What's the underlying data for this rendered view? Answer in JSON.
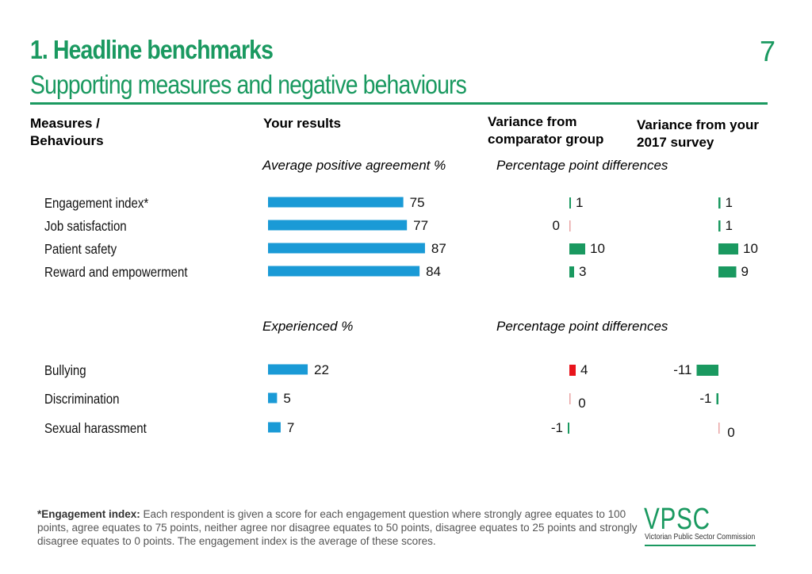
{
  "header": {
    "title": "1. Headline benchmarks",
    "subtitle": "Supporting measures and negative behaviours",
    "page_number": "7"
  },
  "columns": {
    "measures": "Measures / Behaviours",
    "results": "Your results",
    "comparator": "Variance from comparator group",
    "survey2017": "Variance from your 2017 survey"
  },
  "chart_data": [
    {
      "type": "bar",
      "section_label": "Average positive agreement %",
      "variance_label": "Percentage point differences",
      "categories": [
        "Engagement index*",
        "Job satisfaction",
        "Patient safety",
        "Reward and empowerment"
      ],
      "values": [
        75,
        77,
        87,
        84
      ],
      "comparator_variance": [
        1,
        0,
        10,
        3
      ],
      "survey_2017_variance": [
        1,
        1,
        10,
        9
      ]
    },
    {
      "type": "bar",
      "section_label": "Experienced %",
      "variance_label": "Percentage point differences",
      "categories": [
        "Bullying",
        "Discrimination",
        "Sexual harassment"
      ],
      "values": [
        22,
        5,
        7
      ],
      "comparator_variance": [
        4,
        0,
        -1
      ],
      "survey_2017_variance": [
        -11,
        -1,
        0
      ]
    }
  ],
  "colors": {
    "bar": "#1a9ad6",
    "positive_favourable": "#1a9960",
    "negative_unfavourable": "#e8141c",
    "zero": "#e9a3a3",
    "heading_green": "#1a9960"
  },
  "footnote": {
    "label": "*Engagement index:",
    "text": " Each respondent is given a score for each engagement question where strongly agree equates to 100 points, agree equates to 75 points, neither agree nor disagree equates to 50 points, disagree equates to 25 points and strongly disagree equates to 0 points. The engagement index is the average of these scores."
  },
  "logo": {
    "name": "VPSC",
    "full_name": "Victorian Public Sector Commission"
  }
}
